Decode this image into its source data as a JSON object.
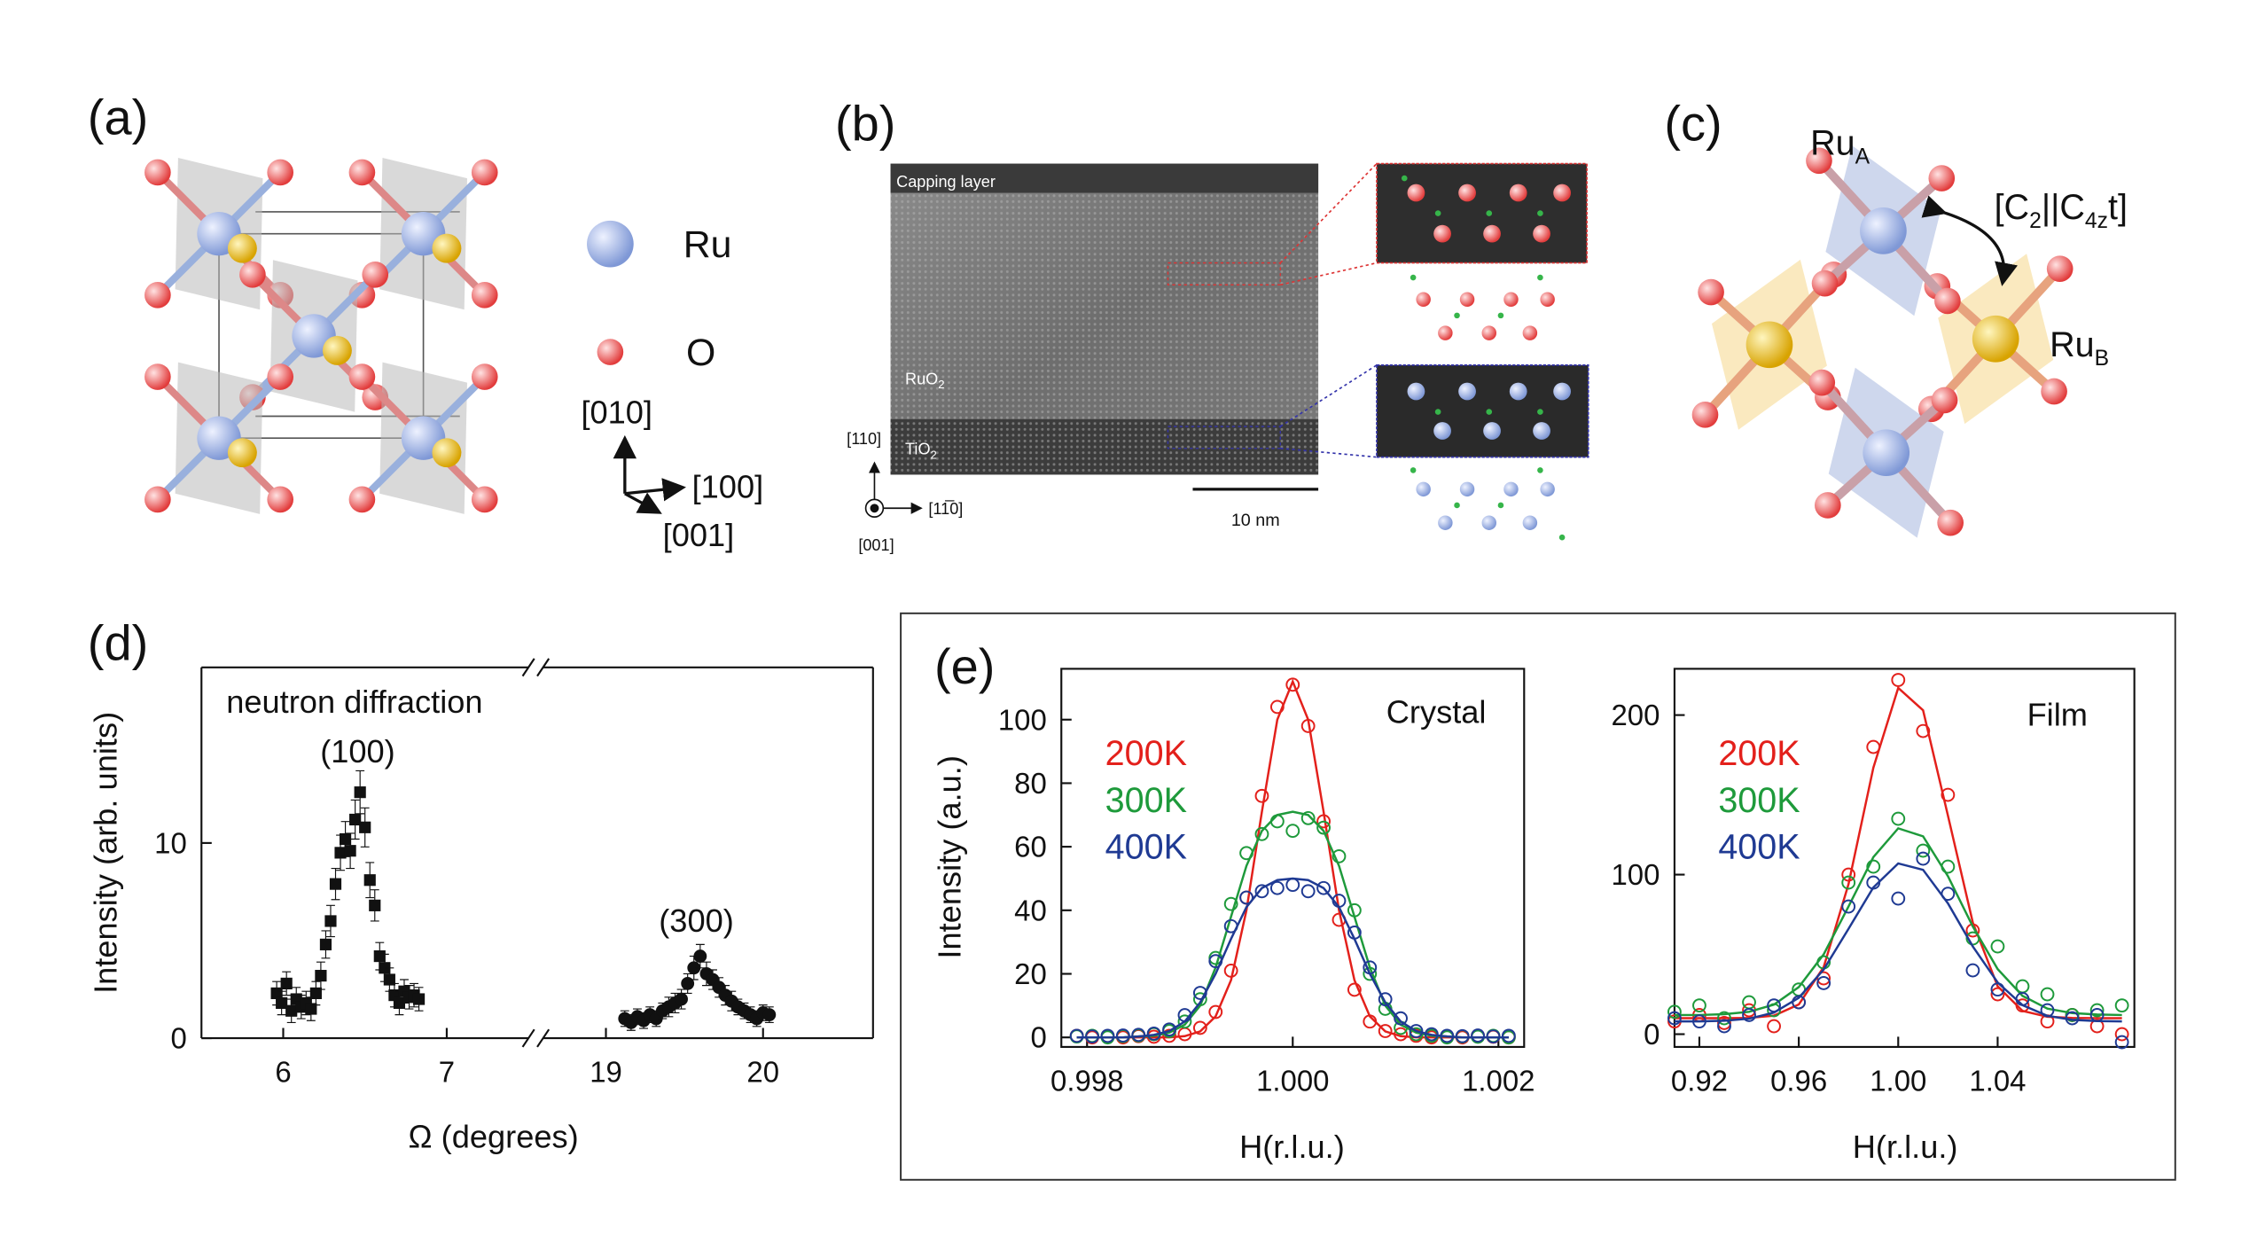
{
  "panel_a": {
    "label": "(a)",
    "ru_label": "Ru",
    "o_label": "O",
    "axis_labels": [
      "[010]",
      "[100]",
      "[001]"
    ]
  },
  "panel_b": {
    "label": "(b)",
    "capping": "Capping layer",
    "film": {
      "base": "RuO",
      "sub": "2"
    },
    "substrate": {
      "base": "TiO",
      "sub": "2"
    },
    "directions": [
      "[110]",
      "[11̅0]",
      "[001]"
    ],
    "scale_bar": "10 nm"
  },
  "panel_c": {
    "label": "(c)",
    "ru_a": {
      "base": "Ru",
      "sub": "A"
    },
    "ru_b": {
      "base": "Ru",
      "sub": "B"
    },
    "symmetry": [
      "[C",
      "2",
      "||C",
      "4z",
      "t]"
    ]
  },
  "panel_e": {
    "label": "(e)"
  },
  "chart_data": [
    {
      "type": "scatter",
      "label": "(d)",
      "annotation": "neutron diffraction",
      "peak_labels": [
        "(100)",
        "(300)"
      ],
      "ylabel": "Intensity (arb. units)",
      "xlabel": "Ω (degrees)",
      "ylim": [
        0,
        19
      ],
      "yticks": [
        0,
        10
      ],
      "x_segments": [
        {
          "xlim": [
            5.5,
            7.5
          ],
          "xticks": [
            6,
            7
          ]
        },
        {
          "xlim": [
            18.6,
            20.7
          ],
          "xticks": [
            19,
            20
          ]
        }
      ],
      "series": [
        {
          "marker": "square",
          "color": "#111111",
          "x": [
            5.96,
            5.99,
            6.02,
            6.05,
            6.08,
            6.11,
            6.14,
            6.17,
            6.2,
            6.23,
            6.26,
            6.29,
            6.32,
            6.35,
            6.38,
            6.41,
            6.44,
            6.47,
            6.5,
            6.53,
            6.56,
            6.59,
            6.62,
            6.65,
            6.68,
            6.71,
            6.74,
            6.77,
            6.8,
            6.83
          ],
          "values": [
            2.3,
            1.8,
            2.8,
            1.4,
            2.0,
            1.6,
            1.8,
            1.5,
            2.3,
            3.2,
            4.8,
            6.0,
            7.9,
            9.5,
            10.2,
            9.6,
            11.2,
            12.6,
            10.8,
            8.1,
            6.8,
            4.2,
            3.6,
            3.0,
            2.2,
            1.8,
            2.4,
            2.1,
            2.2,
            2.0
          ],
          "errors": [
            0.6,
            0.6,
            0.6,
            0.6,
            0.6,
            0.6,
            0.6,
            0.6,
            0.6,
            0.7,
            0.7,
            0.8,
            0.8,
            0.9,
            0.9,
            0.9,
            1.0,
            1.1,
            1.0,
            0.9,
            0.8,
            0.7,
            0.7,
            0.6,
            0.6,
            0.6,
            0.6,
            0.6,
            0.6,
            0.6
          ]
        },
        {
          "marker": "circle",
          "color": "#111111",
          "x": [
            19.12,
            19.16,
            19.2,
            19.24,
            19.28,
            19.32,
            19.36,
            19.4,
            19.44,
            19.48,
            19.52,
            19.56,
            19.6,
            19.64,
            19.68,
            19.72,
            19.76,
            19.8,
            19.84,
            19.88,
            19.92,
            19.96,
            20.0,
            20.04
          ],
          "values": [
            1.0,
            0.8,
            1.1,
            0.9,
            1.2,
            1.0,
            1.4,
            1.6,
            1.8,
            2.0,
            2.8,
            3.6,
            4.2,
            3.3,
            3.0,
            2.6,
            2.2,
            1.9,
            1.6,
            1.4,
            1.2,
            1.0,
            1.3,
            1.2
          ],
          "errors": [
            0.4,
            0.4,
            0.4,
            0.4,
            0.4,
            0.4,
            0.4,
            0.5,
            0.5,
            0.5,
            0.5,
            0.6,
            0.6,
            0.6,
            0.5,
            0.5,
            0.5,
            0.5,
            0.4,
            0.4,
            0.4,
            0.4,
            0.4,
            0.4
          ]
        }
      ]
    },
    {
      "type": "line",
      "annotation": "Crystal",
      "ylabel": "Intensity (a.u.)",
      "xlabel": "H(r.l.u.)",
      "xlim": [
        0.99775,
        1.00225
      ],
      "xticks": [
        {
          "value": 0.998,
          "label": "0.998"
        },
        {
          "value": 1,
          "label": "1.000"
        },
        {
          "value": 1.002,
          "label": "1.002"
        }
      ],
      "ylim": [
        -3,
        116
      ],
      "yticks": [
        0,
        20,
        40,
        60,
        80,
        100
      ],
      "x": [
        0.9979,
        0.99805,
        0.9982,
        0.99835,
        0.9985,
        0.99865,
        0.9988,
        0.99895,
        0.9991,
        0.99925,
        0.9994,
        0.99955,
        0.9997,
        0.99985,
        1.0,
        1.00015,
        1.0003,
        1.00045,
        1.0006,
        1.00075,
        1.0009,
        1.00105,
        1.0012,
        1.00135,
        1.0015,
        1.00165,
        1.0018,
        1.00195,
        1.0021
      ],
      "series": [
        {
          "name": "200K",
          "color": "#e3201b",
          "values": [
            0.5,
            0,
            0.3,
            0,
            0.4,
            0.2,
            0.5,
            1,
            3,
            8,
            21,
            44,
            76,
            104,
            111,
            98,
            68,
            37,
            15,
            5,
            2,
            1,
            0.5,
            0,
            0.3,
            0,
            0.5,
            0.2,
            0
          ],
          "fit": [
            0,
            0,
            0,
            0,
            0,
            0,
            0,
            0.4,
            1.9,
            6.6,
            18,
            40,
            71,
            100,
            112,
            100,
            71,
            40,
            18,
            6.6,
            1.9,
            0.4,
            0,
            0,
            0,
            0,
            0,
            0,
            0
          ]
        },
        {
          "name": "300K",
          "color": "#1e9a3b",
          "values": [
            0.3,
            0.5,
            0,
            0.4,
            0.6,
            1,
            2,
            5,
            12,
            25,
            42,
            58,
            64,
            68,
            65,
            69,
            66,
            57,
            40,
            20,
            9,
            3,
            1,
            0.5,
            0,
            0.3,
            0.2,
            0.5,
            0
          ],
          "fit": [
            0,
            0,
            0,
            0,
            0.3,
            0.5,
            1.5,
            4,
            10,
            22,
            38,
            54,
            65,
            70,
            71,
            70,
            65,
            54,
            38,
            22,
            10,
            4,
            1.5,
            0.5,
            0.3,
            0,
            0,
            0,
            0
          ]
        },
        {
          "name": "400K",
          "color": "#1f3a93",
          "values": [
            0.5,
            0.3,
            0.5,
            0.6,
            0.8,
            1.2,
            2.5,
            7,
            14,
            24,
            35,
            44,
            46,
            47,
            48,
            46,
            47,
            43,
            33,
            22,
            12,
            6,
            2,
            1,
            0.5,
            0.4,
            0.6,
            0.3,
            0.5
          ],
          "fit": [
            0,
            0,
            0,
            0,
            0.3,
            0.8,
            2,
            5,
            11,
            20,
            31,
            41,
            47,
            49.5,
            50,
            49.5,
            47,
            41,
            31,
            20,
            11,
            5,
            2,
            0.8,
            0.3,
            0,
            0,
            0,
            0
          ]
        }
      ]
    },
    {
      "type": "line",
      "annotation": "Film",
      "xlabel": "H(r.l.u.)",
      "xlim": [
        0.91,
        1.095
      ],
      "xticks": [
        0.92,
        0.96,
        {
          "value": 1,
          "label": "1.00"
        },
        1.04
      ],
      "ylim": [
        -8,
        229
      ],
      "yticks": [
        0,
        100,
        200
      ],
      "x": [
        0.91,
        0.92,
        0.93,
        0.94,
        0.95,
        0.96,
        0.97,
        0.98,
        0.99,
        1.0,
        1.01,
        1.02,
        1.03,
        1.04,
        1.05,
        1.06,
        1.07,
        1.08,
        1.09
      ],
      "series": [
        {
          "name": "200K",
          "color": "#e3201b",
          "values": [
            8,
            12,
            7,
            15,
            5,
            20,
            35,
            100,
            180,
            222,
            190,
            150,
            65,
            25,
            18,
            8,
            12,
            5,
            0
          ],
          "fit": [
            10,
            10,
            10,
            10.2,
            11.6,
            18.6,
            42,
            94,
            167,
            217,
            203,
            137,
            70,
            30,
            14.6,
            10.9,
            10.2,
            10,
            10
          ]
        },
        {
          "name": "300K",
          "color": "#1e9a3b",
          "values": [
            14,
            18,
            10,
            20,
            15,
            28,
            45,
            95,
            105,
            135,
            115,
            105,
            60,
            55,
            30,
            25,
            12,
            15,
            18
          ],
          "fit": [
            12,
            12,
            12.5,
            14,
            18.5,
            29.5,
            50,
            80,
            111,
            129,
            124,
            99,
            67.5,
            40.8,
            24,
            16,
            13.2,
            12.3,
            12
          ]
        },
        {
          "name": "400K",
          "color": "#1f3a93",
          "values": [
            10,
            8,
            5,
            12,
            18,
            20,
            32,
            80,
            95,
            85,
            110,
            88,
            40,
            28,
            22,
            15,
            10,
            12,
            -5
          ],
          "fit": [
            8,
            8,
            8.4,
            9.7,
            13.5,
            22.8,
            40.5,
            66,
            92,
            107,
            103,
            82,
            55,
            32.4,
            18.2,
            11.5,
            9,
            8.2,
            8
          ]
        }
      ]
    }
  ]
}
